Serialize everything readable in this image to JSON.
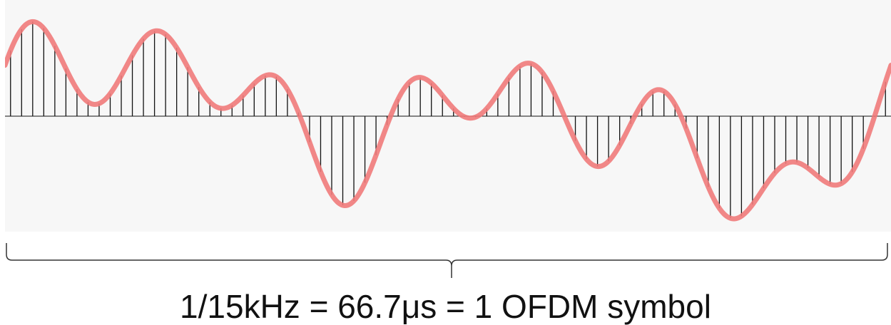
{
  "colors": {
    "panel_background": "#f7f7f7",
    "envelope": "#f07a7a",
    "sample_lines": "#111111",
    "baseline": "#111111",
    "brace": "#333333",
    "caption": "#111111"
  },
  "waveform": {
    "tones": [
      {
        "freq": 7,
        "amp": 0.36,
        "phase": 0.4
      },
      {
        "freq": 4,
        "amp": 0.22,
        "phase": 1.3
      },
      {
        "freq": 2,
        "amp": 0.42,
        "phase": 0.2
      },
      {
        "freq": 1,
        "amp": 0.28,
        "phase": 0.1
      }
    ],
    "sample_count": 80
  },
  "caption": "1/15kHz = 66.7μs = 1 OFDM symbol"
}
